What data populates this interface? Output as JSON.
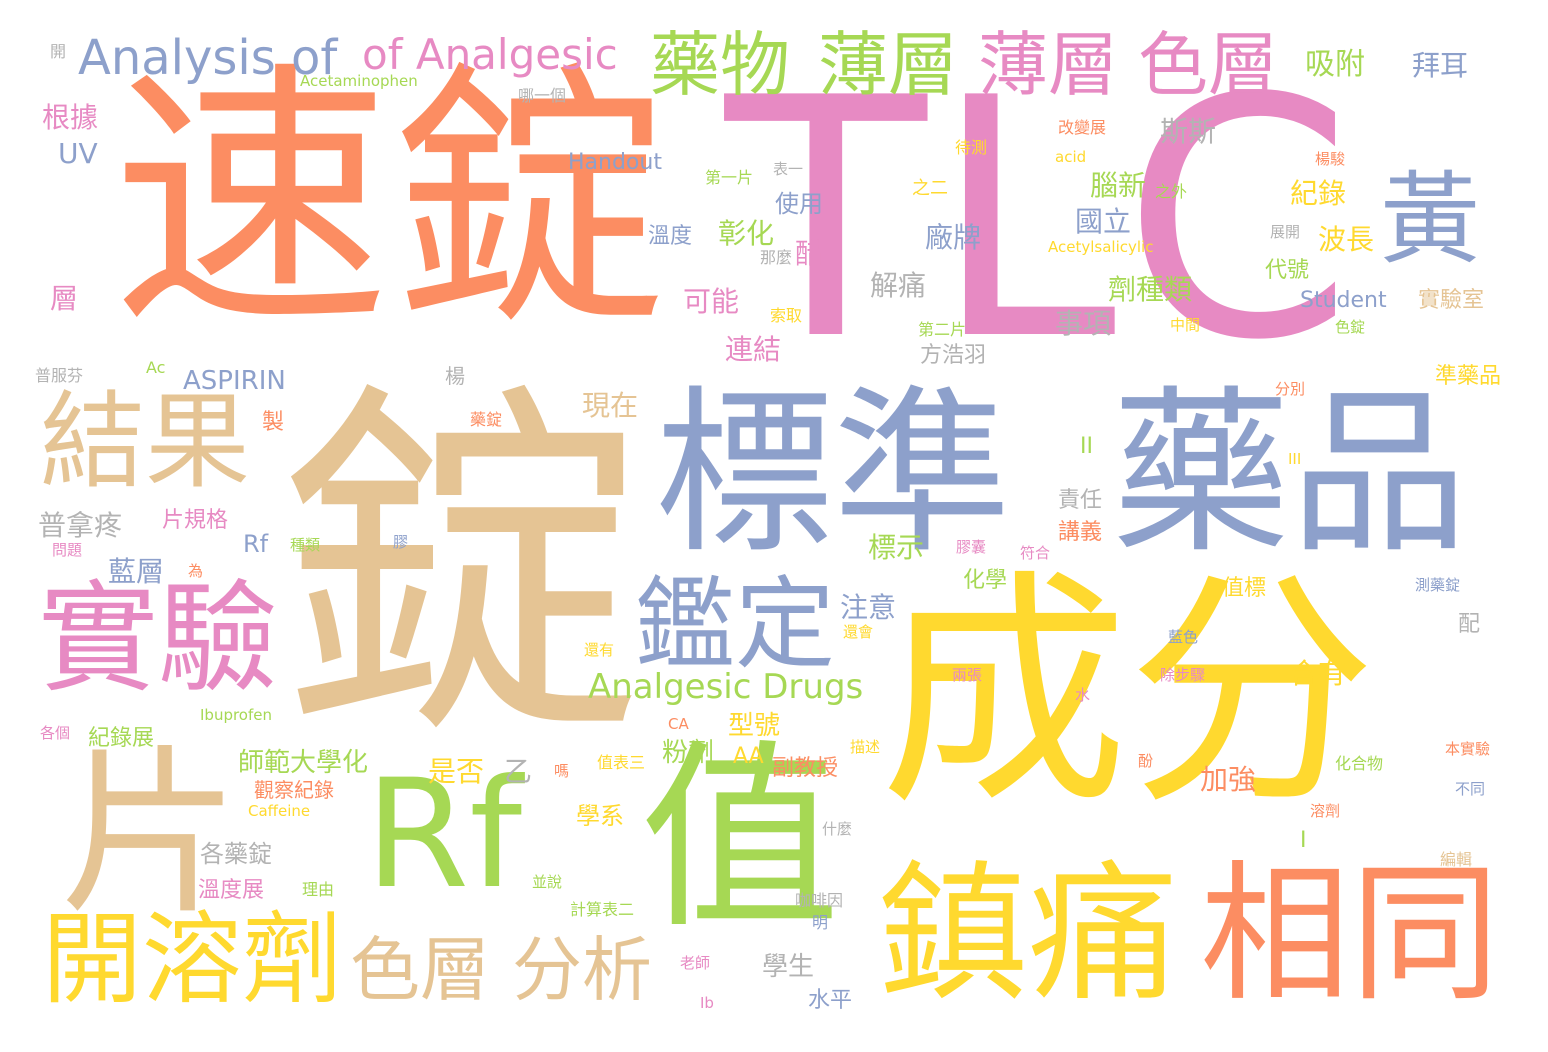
{
  "palette": {
    "orange": "#fc8d62",
    "tan": "#e5c494",
    "blue": "#8da0cb",
    "pink": "#e78ac3",
    "green": "#a6d854",
    "yellow": "#ffd92f",
    "gray": "#b3b3b3"
  },
  "words": [
    {
      "text": "速錠",
      "color": "orange"
    },
    {
      "text": "TLC",
      "color": "pink"
    },
    {
      "text": "錠",
      "color": "tan"
    },
    {
      "text": "標準",
      "color": "blue"
    },
    {
      "text": "藥品",
      "color": "blue"
    },
    {
      "text": "成分",
      "color": "yellow"
    },
    {
      "text": "Rf",
      "color": "green"
    },
    {
      "text": "值",
      "color": "green"
    },
    {
      "text": "片",
      "color": "tan"
    },
    {
      "text": "鎮痛",
      "color": "yellow"
    },
    {
      "text": "相同",
      "color": "orange"
    },
    {
      "text": "開溶劑",
      "color": "yellow"
    },
    {
      "text": "實驗",
      "color": "pink"
    },
    {
      "text": "結果",
      "color": "tan"
    },
    {
      "text": "鑑定",
      "color": "blue"
    },
    {
      "text": "黃",
      "color": "blue"
    },
    {
      "text": "Analysis of",
      "color": "blue"
    },
    {
      "text": "of Analgesic",
      "color": "pink"
    },
    {
      "text": "藥物",
      "color": "green"
    },
    {
      "text": "薄層",
      "color": "green"
    },
    {
      "text": "薄層",
      "color": "pink"
    },
    {
      "text": "色層",
      "color": "pink"
    },
    {
      "text": "色層",
      "color": "tan"
    },
    {
      "text": "分析",
      "color": "tan"
    },
    {
      "text": "Analgesic Drugs",
      "color": "green"
    },
    {
      "text": "吸附",
      "color": "green"
    },
    {
      "text": "拜耳",
      "color": "blue"
    },
    {
      "text": "Acetaminophen",
      "color": "green"
    },
    {
      "text": "哪一個",
      "color": "gray"
    },
    {
      "text": "開",
      "color": "gray"
    },
    {
      "text": "根據",
      "color": "pink"
    },
    {
      "text": "UV",
      "color": "blue"
    },
    {
      "text": "Handout",
      "color": "blue"
    },
    {
      "text": "斯斯",
      "color": "gray"
    },
    {
      "text": "改變展",
      "color": "orange"
    },
    {
      "text": "待測",
      "color": "yellow"
    },
    {
      "text": "acid",
      "color": "yellow"
    },
    {
      "text": "第一片",
      "color": "green"
    },
    {
      "text": "表一",
      "color": "gray"
    },
    {
      "text": "之二",
      "color": "yellow"
    },
    {
      "text": "腦新",
      "color": "green"
    },
    {
      "text": "之外",
      "color": "green"
    },
    {
      "text": "紀錄",
      "color": "yellow"
    },
    {
      "text": "楊駿",
      "color": "orange"
    },
    {
      "text": "使用",
      "color": "blue"
    },
    {
      "text": "溫度",
      "color": "blue"
    },
    {
      "text": "彰化",
      "color": "green"
    },
    {
      "text": "國立",
      "color": "blue"
    },
    {
      "text": "廠牌",
      "color": "blue"
    },
    {
      "text": "波長",
      "color": "yellow"
    },
    {
      "text": "展開",
      "color": "gray"
    },
    {
      "text": "Acetylsalicylic",
      "color": "yellow"
    },
    {
      "text": "那麼",
      "color": "gray"
    },
    {
      "text": "醋",
      "color": "pink"
    },
    {
      "text": "代號",
      "color": "green"
    },
    {
      "text": "解痛",
      "color": "gray"
    },
    {
      "text": "劑種類",
      "color": "green"
    },
    {
      "text": "可能",
      "color": "pink"
    },
    {
      "text": "層",
      "color": "pink"
    },
    {
      "text": "索取",
      "color": "yellow"
    },
    {
      "text": "事項",
      "color": "gray"
    },
    {
      "text": "Student",
      "color": "blue"
    },
    {
      "text": "實驗室",
      "color": "tan"
    },
    {
      "text": "第二片",
      "color": "green"
    },
    {
      "text": "中間",
      "color": "yellow"
    },
    {
      "text": "色錠",
      "color": "green"
    },
    {
      "text": "連結",
      "color": "pink"
    },
    {
      "text": "方浩羽",
      "color": "gray"
    },
    {
      "text": "Ac",
      "color": "green"
    },
    {
      "text": "ASPIRIN",
      "color": "blue"
    },
    {
      "text": "普服芬",
      "color": "gray"
    },
    {
      "text": "楊",
      "color": "gray"
    },
    {
      "text": "準藥品",
      "color": "yellow"
    },
    {
      "text": "分別",
      "color": "orange"
    },
    {
      "text": "現在",
      "color": "tan"
    },
    {
      "text": "藥錠",
      "color": "orange"
    },
    {
      "text": "製",
      "color": "orange"
    },
    {
      "text": "II",
      "color": "green"
    },
    {
      "text": "III",
      "color": "yellow"
    },
    {
      "text": "責任",
      "color": "gray"
    },
    {
      "text": "普拿疼",
      "color": "gray"
    },
    {
      "text": "片規格",
      "color": "pink"
    },
    {
      "text": "講義",
      "color": "orange"
    },
    {
      "text": "Rf",
      "color": "blue"
    },
    {
      "text": "問題",
      "color": "pink"
    },
    {
      "text": "種類",
      "color": "green"
    },
    {
      "text": "膠",
      "color": "blue"
    },
    {
      "text": "標示",
      "color": "green"
    },
    {
      "text": "膠囊",
      "color": "pink"
    },
    {
      "text": "符合",
      "color": "pink"
    },
    {
      "text": "藍層",
      "color": "blue"
    },
    {
      "text": "為",
      "color": "orange"
    },
    {
      "text": "化學",
      "color": "green"
    },
    {
      "text": "值標",
      "color": "yellow"
    },
    {
      "text": "測藥錠",
      "color": "blue"
    },
    {
      "text": "注意",
      "color": "blue"
    },
    {
      "text": "還會",
      "color": "yellow"
    },
    {
      "text": "配",
      "color": "gray"
    },
    {
      "text": "藍色",
      "color": "blue"
    },
    {
      "text": "還有",
      "color": "yellow"
    },
    {
      "text": "兩張",
      "color": "pink"
    },
    {
      "text": "除步驟",
      "color": "pink"
    },
    {
      "text": "含有",
      "color": "yellow"
    },
    {
      "text": "水",
      "color": "pink"
    },
    {
      "text": "Ibuprofen",
      "color": "green"
    },
    {
      "text": "型號",
      "color": "yellow"
    },
    {
      "text": "各個",
      "color": "pink"
    },
    {
      "text": "紀錄展",
      "color": "green"
    },
    {
      "text": "CA",
      "color": "orange"
    },
    {
      "text": "粉劑",
      "color": "green"
    },
    {
      "text": "AA",
      "color": "yellow"
    },
    {
      "text": "描述",
      "color": "yellow"
    },
    {
      "text": "本實驗",
      "color": "orange"
    },
    {
      "text": "師範大學化",
      "color": "green"
    },
    {
      "text": "是否",
      "color": "yellow"
    },
    {
      "text": "乙",
      "color": "gray"
    },
    {
      "text": "嗎",
      "color": "orange"
    },
    {
      "text": "值表三",
      "color": "yellow"
    },
    {
      "text": "副教授",
      "color": "orange"
    },
    {
      "text": "加強",
      "color": "orange"
    },
    {
      "text": "酚",
      "color": "orange"
    },
    {
      "text": "化合物",
      "color": "green"
    },
    {
      "text": "觀察紀錄",
      "color": "orange"
    },
    {
      "text": "Caffeine",
      "color": "yellow"
    },
    {
      "text": "學系",
      "color": "yellow"
    },
    {
      "text": "不同",
      "color": "blue"
    },
    {
      "text": "什麼",
      "color": "gray"
    },
    {
      "text": "溶劑",
      "color": "orange"
    },
    {
      "text": "各藥錠",
      "color": "gray"
    },
    {
      "text": "I",
      "color": "green"
    },
    {
      "text": "溫度展",
      "color": "pink"
    },
    {
      "text": "理由",
      "color": "green"
    },
    {
      "text": "並說",
      "color": "green"
    },
    {
      "text": "咖啡因",
      "color": "gray"
    },
    {
      "text": "編輯",
      "color": "tan"
    },
    {
      "text": "計算表二",
      "color": "green"
    },
    {
      "text": "明",
      "color": "blue"
    },
    {
      "text": "老師",
      "color": "pink"
    },
    {
      "text": "學生",
      "color": "gray"
    },
    {
      "text": "Ib",
      "color": "pink"
    },
    {
      "text": "水平",
      "color": "blue"
    }
  ]
}
